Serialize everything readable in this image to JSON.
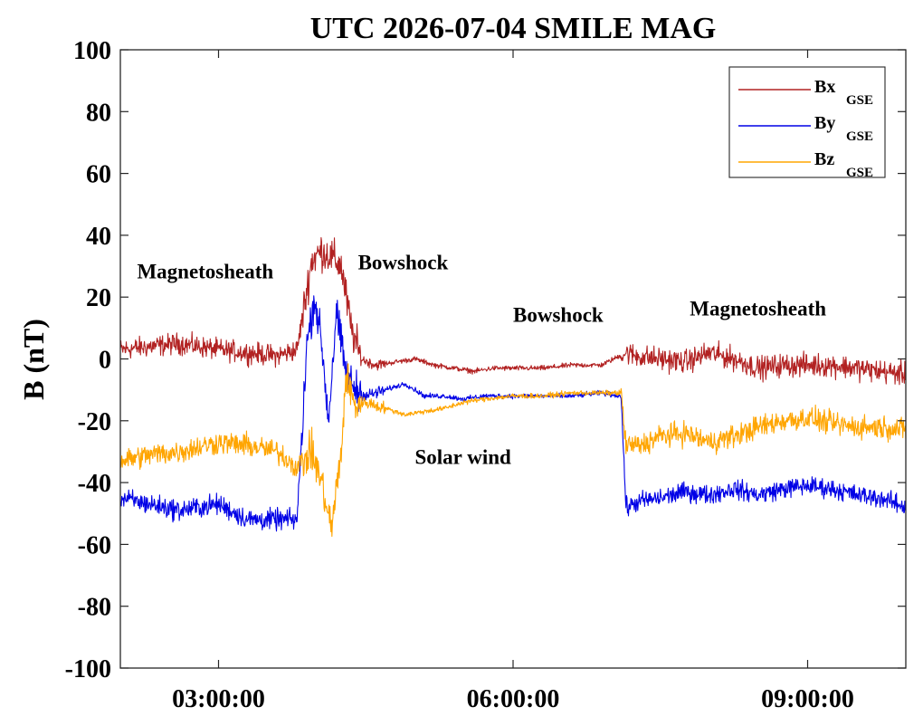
{
  "chart_data": {
    "type": "line",
    "title": "UTC 2026-07-04 SMILE MAG",
    "ylabel": "B (nT)",
    "xlabel": "",
    "x_unit": "hours UTC",
    "xlim": [
      2.0,
      10.0
    ],
    "ylim": [
      -100,
      100
    ],
    "yticks": [
      -100,
      -80,
      -60,
      -40,
      -20,
      0,
      20,
      40,
      60,
      80,
      100
    ],
    "ytick_labels": [
      "-100",
      "-80",
      "-60",
      "-40",
      "-20",
      "0",
      "20",
      "40",
      "60",
      "80",
      "100"
    ],
    "xticks": [
      3,
      6,
      9
    ],
    "xtick_labels": [
      "03:00:00",
      "06:00:00",
      "09:00:00"
    ],
    "grid": false,
    "legend_placement": "top-right",
    "series": [
      {
        "name": "Bx",
        "name_sub": "GSE",
        "color": "#B22222",
        "x": [
          2.0,
          2.3,
          2.6,
          3.0,
          3.3,
          3.6,
          3.8,
          3.95,
          4.05,
          4.15,
          4.25,
          4.35,
          4.45,
          4.6,
          4.8,
          5.0,
          5.2,
          5.4,
          5.6,
          5.8,
          6.0,
          6.3,
          6.6,
          6.9,
          7.15,
          7.25,
          7.5,
          7.75,
          8.0,
          8.25,
          8.5,
          8.75,
          9.0,
          9.25,
          9.5,
          9.75,
          10.0
        ],
        "y": [
          3,
          4,
          5,
          3,
          2,
          1,
          3,
          32,
          35,
          33,
          30,
          10,
          0,
          -2,
          -1,
          0,
          -2,
          -3,
          -4,
          -3,
          -3,
          -3,
          -2,
          -2,
          2,
          1,
          0,
          -1,
          2,
          0,
          -3,
          -2,
          -2,
          -2,
          -3,
          -4,
          -5
        ]
      },
      {
        "name": "By",
        "name_sub": "GSE",
        "color": "#0000E6",
        "x": [
          2.0,
          2.3,
          2.6,
          3.0,
          3.3,
          3.6,
          3.8,
          3.9,
          3.98,
          4.05,
          4.12,
          4.2,
          4.3,
          4.4,
          4.5,
          4.7,
          4.9,
          5.1,
          5.3,
          5.5,
          5.7,
          6.0,
          6.3,
          6.6,
          6.9,
          7.1,
          7.15,
          7.3,
          7.5,
          7.75,
          8.0,
          8.25,
          8.5,
          8.75,
          9.0,
          9.25,
          9.5,
          9.75,
          10.0
        ],
        "y": [
          -45,
          -47,
          -49,
          -47,
          -52,
          -52,
          -52,
          5,
          20,
          5,
          -20,
          15,
          -5,
          -10,
          -12,
          -10,
          -8,
          -12,
          -12,
          -13,
          -12,
          -12,
          -12,
          -12,
          -11,
          -12,
          -48,
          -46,
          -45,
          -43,
          -44,
          -42,
          -44,
          -42,
          -41,
          -42,
          -44,
          -45,
          -48
        ]
      },
      {
        "name": "Bz",
        "name_sub": "GSE",
        "color": "#FFA500",
        "x": [
          2.0,
          2.3,
          2.6,
          3.0,
          3.3,
          3.6,
          3.8,
          3.95,
          4.05,
          4.15,
          4.25,
          4.3,
          4.38,
          4.5,
          4.7,
          4.9,
          5.1,
          5.3,
          5.5,
          5.7,
          6.0,
          6.3,
          6.6,
          6.9,
          7.1,
          7.15,
          7.3,
          7.5,
          7.75,
          8.0,
          8.25,
          8.5,
          8.75,
          9.0,
          9.25,
          9.5,
          9.75,
          10.0
        ],
        "y": [
          -33,
          -31,
          -30,
          -27,
          -28,
          -30,
          -35,
          -30,
          -40,
          -55,
          -30,
          -5,
          -15,
          -14,
          -16,
          -18,
          -17,
          -16,
          -14,
          -13,
          -12,
          -12,
          -11,
          -11,
          -11,
          -28,
          -28,
          -25,
          -24,
          -27,
          -25,
          -22,
          -20,
          -19,
          -21,
          -22,
          -22,
          -23
        ]
      }
    ],
    "annotations": [
      {
        "text": "Magnetosheath",
        "x": 2.17,
        "y": 26
      },
      {
        "text": "Bowshock",
        "x": 4.42,
        "y": 29
      },
      {
        "text": "Bowshock",
        "x": 6.0,
        "y": 12
      },
      {
        "text": "Magnetosheath",
        "x": 7.8,
        "y": 14
      },
      {
        "text": "Solar wind",
        "x": 5.0,
        "y": -34
      }
    ]
  }
}
